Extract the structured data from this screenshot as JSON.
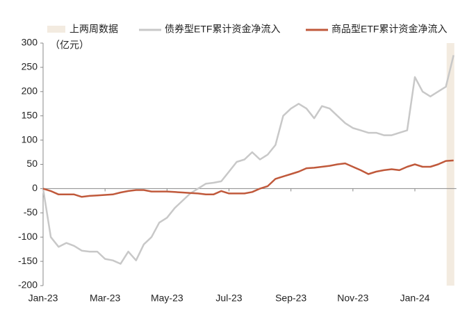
{
  "chart_data": {
    "type": "line",
    "unit_label": "（亿元）",
    "categories": [
      "Jan-23",
      null,
      null,
      null,
      null,
      null,
      null,
      null,
      "Mar-23",
      null,
      null,
      null,
      null,
      null,
      null,
      null,
      "May-23",
      null,
      null,
      null,
      null,
      null,
      null,
      null,
      "Jul-23",
      null,
      null,
      null,
      null,
      null,
      null,
      null,
      "Sep-23",
      null,
      null,
      null,
      null,
      null,
      null,
      null,
      "Nov-23",
      null,
      null,
      null,
      null,
      null,
      null,
      null,
      "Jan-24",
      null,
      null,
      null,
      null,
      null
    ],
    "series": [
      {
        "name": "债券型ETF累计资金净流入",
        "color": "#c8c8c8",
        "values": [
          0,
          -100,
          -120,
          -112,
          -118,
          -128,
          -130,
          -130,
          -145,
          -148,
          -155,
          -130,
          -148,
          -115,
          -100,
          -70,
          -60,
          -40,
          -25,
          -10,
          0,
          10,
          12,
          15,
          35,
          55,
          60,
          75,
          60,
          70,
          90,
          150,
          165,
          175,
          165,
          145,
          170,
          165,
          150,
          135,
          125,
          120,
          115,
          115,
          110,
          110,
          115,
          120,
          230,
          200,
          190,
          200,
          210,
          275
        ]
      },
      {
        "name": "商品型ETF累计资金净流入",
        "color": "#c0593b",
        "values": [
          0,
          -5,
          -12,
          -12,
          -12,
          -17,
          -15,
          -14,
          -13,
          -12,
          -8,
          -5,
          -3,
          -3,
          -6,
          -6,
          -6,
          -7,
          -8,
          -9,
          -10,
          -12,
          -12,
          -5,
          -10,
          -10,
          -10,
          -7,
          0,
          5,
          20,
          25,
          30,
          35,
          42,
          43,
          45,
          47,
          50,
          52,
          45,
          38,
          30,
          35,
          38,
          40,
          38,
          45,
          50,
          45,
          45,
          50,
          57,
          58
        ]
      }
    ],
    "highlight": {
      "name": "上两周数据",
      "color": "#f3ebe0",
      "start": 52,
      "end": 53
    },
    "ylim": [
      -200,
      300
    ],
    "yticks": [
      -200,
      -150,
      -100,
      -50,
      0,
      50,
      100,
      150,
      200,
      250,
      300
    ]
  }
}
